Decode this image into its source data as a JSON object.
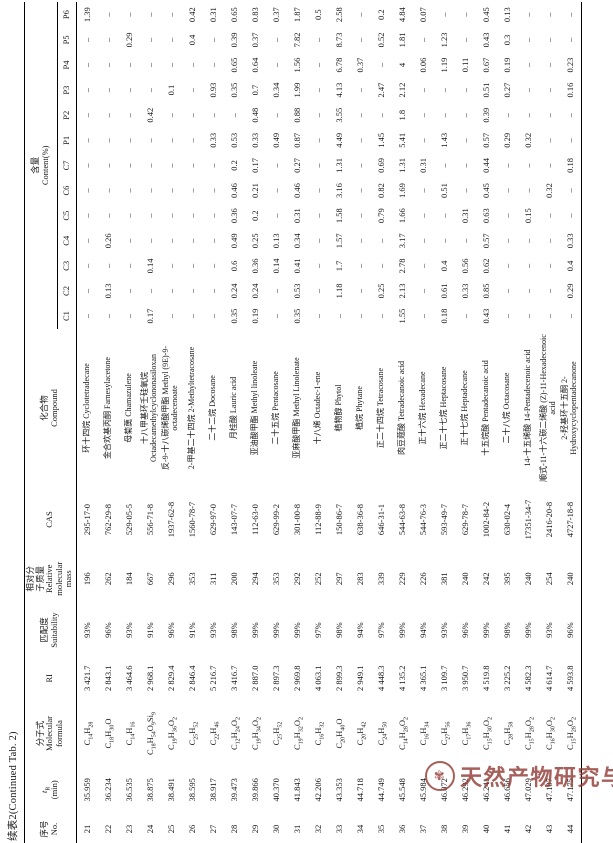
{
  "caption": "续表2(Continued Tab. 2)",
  "watermark": {
    "text": "天然产物研究与开发"
  },
  "colors": {
    "rule": "#000000",
    "watermark": "#923d37",
    "text": "#161616"
  },
  "table": {
    "headers": {
      "no": "序号\nNo.",
      "tr_sym": "t",
      "tr_sub": "R",
      "tr_unit": "(min)",
      "formula": "分子式\nMolecular\nformula",
      "ri": "RI",
      "suitability": "匹配度\nSuitability",
      "mass": "相对分\n子质量\nRelative\nmolecular\nmass",
      "cas": "CAS",
      "compound": "化合物\nCompound",
      "content": "含量\nContent(%)"
    },
    "content_cols": [
      "C1",
      "C2",
      "C3",
      "C4",
      "C5",
      "C6",
      "C7",
      "P1",
      "P2",
      "P3",
      "P4",
      "P5",
      "P6"
    ],
    "rows": [
      {
        "no": "21",
        "tr": "35.959",
        "formula": "C14H28",
        "ri": "3 421.7",
        "suit": "93%",
        "mass": "196",
        "cas": "295-17-0",
        "cn": "环十四烷",
        "en": "Cyclotetradecane",
        "c": [
          "–",
          "–",
          "–",
          "–",
          "–",
          "–",
          "–",
          "–",
          "–",
          "–",
          "–",
          "–",
          "1.39"
        ]
      },
      {
        "no": "22",
        "tr": "36.234",
        "formula": "C18H30O",
        "ri": "2 843.1",
        "suit": "96%",
        "mass": "262",
        "cas": "762-29-8",
        "cn": "金合欢基丙酮",
        "en": "Farnesylacetone",
        "c": [
          "–",
          "0.13",
          "–",
          "0.26",
          "–",
          "–",
          "–",
          "–",
          "–",
          "–",
          "–",
          "–",
          "–"
        ]
      },
      {
        "no": "23",
        "tr": "36.535",
        "formula": "C14H16",
        "ri": "3 464.6",
        "suit": "93%",
        "mass": "184",
        "cas": "529-05-5",
        "cn": "母菊薁",
        "en": "Chamazulene",
        "c": [
          "–",
          "–",
          "–",
          "–",
          "–",
          "–",
          "–",
          "–",
          "–",
          "–",
          "–",
          "0.29",
          "–"
        ]
      },
      {
        "no": "24",
        "tr": "38.875",
        "formula": "C18H54O9Si9",
        "ri": "2 968.1",
        "suit": "91%",
        "mass": "667",
        "cas": "556-71-8",
        "cn": "十八甲基环壬硅氧烷",
        "en": "Octadecamethylcyclononasiloxan",
        "c": [
          "0.17",
          "–",
          "0.14",
          "–",
          "–",
          "–",
          "–",
          "–",
          "0.42",
          "–",
          "–",
          "–",
          "–"
        ]
      },
      {
        "no": "25",
        "tr": "38.491",
        "formula": "C19H36O2",
        "ri": "2 829.4",
        "suit": "96%",
        "mass": "296",
        "cas": "1937-62-8",
        "cn": "反-9-十八碳烯酸甲酯",
        "en": "Methyl (9E)-9-octadecenoate",
        "c": [
          "–",
          "–",
          "–",
          "–",
          "–",
          "–",
          "–",
          "–",
          "–",
          "0.1",
          "–",
          "–",
          "–"
        ]
      },
      {
        "no": "26",
        "tr": "38.595",
        "formula": "C25H52",
        "ri": "2 846.4",
        "suit": "91%",
        "mass": "353",
        "cas": "1560-78-7",
        "cn": "2-甲基二十四烷",
        "en": "2-Methyltetracosane",
        "c": [
          "–",
          "–",
          "–",
          "–",
          "–",
          "–",
          "–",
          "–",
          "–",
          "–",
          "–",
          "0.4",
          "0.42"
        ]
      },
      {
        "no": "27",
        "tr": "38.917",
        "formula": "C22H46",
        "ri": "5 216.7",
        "suit": "93%",
        "mass": "311",
        "cas": "629-97-0",
        "cn": "二十二烷",
        "en": "Docosane",
        "c": [
          "–",
          "–",
          "–",
          "–",
          "–",
          "–",
          "–",
          "0.33",
          "–",
          "0.93",
          "–",
          "–",
          "0.31"
        ]
      },
      {
        "no": "28",
        "tr": "39.473",
        "formula": "C12H24O2",
        "ri": "3 416.7",
        "suit": "98%",
        "mass": "200",
        "cas": "143-07-7",
        "cn": "月桂酸",
        "en": "Lauric acid",
        "c": [
          "0.35",
          "0.24",
          "0.6",
          "0.49",
          "0.36",
          "0.46",
          "0.2",
          "0.53",
          "–",
          "0.35",
          "0.65",
          "0.39",
          "0.65"
        ]
      },
      {
        "no": "29",
        "tr": "39.866",
        "formula": "C19H34O2",
        "ri": "2 887.0",
        "suit": "99%",
        "mass": "294",
        "cas": "112-63-0",
        "cn": "亚油酸甲酯",
        "en": "Methyl linoleate",
        "c": [
          "0.19",
          "0.24",
          "0.36",
          "0.25",
          "0.2",
          "0.21",
          "0.17",
          "0.33",
          "0.48",
          "0.7",
          "0.64",
          "0.37",
          "0.83"
        ]
      },
      {
        "no": "30",
        "tr": "40.370",
        "formula": "C25H52",
        "ri": "2 897.3",
        "suit": "99%",
        "mass": "353",
        "cas": "629-99-2",
        "cn": "二十五烷",
        "en": "Pentacosane",
        "c": [
          "–",
          "–",
          "0.14",
          "0.13",
          "–",
          "–",
          "–",
          "0.49",
          "–",
          "0.34",
          "–",
          "–",
          "0.37"
        ]
      },
      {
        "no": "31",
        "tr": "41.843",
        "formula": "C19H32O2",
        "ri": "2 969.8",
        "suit": "99%",
        "mass": "292",
        "cas": "301-00-8",
        "cn": "亚麻酸甲酯",
        "en": "Methyl Linolenate",
        "c": [
          "0.35",
          "0.53",
          "0.41",
          "0.34",
          "0.31",
          "0.46",
          "0.27",
          "0.87",
          "0.88",
          "1.99",
          "1.56",
          "7.82",
          "1.87"
        ]
      },
      {
        "no": "32",
        "tr": "42.206",
        "formula": "C16H32",
        "ri": "4 063.1",
        "suit": "97%",
        "mass": "252",
        "cas": "112-88-9",
        "cn": "十八烯",
        "en": "Octadec-1-ene",
        "c": [
          "–",
          "–",
          "–",
          "–",
          "–",
          "–",
          "–",
          "–",
          "–",
          "–",
          "–",
          "–",
          "0.5"
        ]
      },
      {
        "no": "33",
        "tr": "43.353",
        "formula": "C20H40O",
        "ri": "2 899.3",
        "suit": "98%",
        "mass": "297",
        "cas": "150-86-7",
        "cn": "植物醇",
        "en": "Phytol",
        "c": [
          "–",
          "1.18",
          "1.7",
          "1.57",
          "1.58",
          "3.16",
          "1.31",
          "4.49",
          "3.55",
          "4.13",
          "6.78",
          "8.73",
          "2.58"
        ]
      },
      {
        "no": "34",
        "tr": "44.718",
        "formula": "C20H42",
        "ri": "2 949.1",
        "suit": "94%",
        "mass": "283",
        "cas": "638-36-8",
        "cn": "植烷",
        "en": "Phytane",
        "c": [
          "–",
          "–",
          "–",
          "–",
          "–",
          "–",
          "–",
          "–",
          "–",
          "–",
          "0.37",
          "–",
          "–"
        ]
      },
      {
        "no": "35",
        "tr": "44.749",
        "formula": "C24H50",
        "ri": "4 448.3",
        "suit": "97%",
        "mass": "339",
        "cas": "646-31-1",
        "cn": "正二十四烷",
        "en": "Tetracosane",
        "c": [
          "–",
          "0.25",
          "–",
          "–",
          "0.79",
          "0.82",
          "0.69",
          "1.45",
          "–",
          "2.47",
          "–",
          "0.52",
          "0.2"
        ]
      },
      {
        "no": "36",
        "tr": "45.548",
        "formula": "C14H28O2",
        "ri": "4 135.2",
        "suit": "99%",
        "mass": "229",
        "cas": "544-63-8",
        "cn": "肉豆蔻酸",
        "en": "Tetradecanoic acid",
        "c": [
          "1.55",
          "2.13",
          "2.78",
          "3.17",
          "1.66",
          "1.69",
          "1.31",
          "5.41",
          "1.8",
          "2.12",
          "4",
          "1.81",
          "4.84"
        ]
      },
      {
        "no": "37",
        "tr": "45.984",
        "formula": "C16H34",
        "ri": "4 365.1",
        "suit": "94%",
        "mass": "226",
        "cas": "544-76-3",
        "cn": "正十六烷",
        "en": "Hexadecane",
        "c": [
          "–",
          "–",
          "–",
          "–",
          "–",
          "–",
          "0.31",
          "–",
          "–",
          "–",
          "0.06",
          "–",
          "0.07"
        ]
      },
      {
        "no": "38",
        "tr": "46.072",
        "formula": "C27H56",
        "ri": "3 109.7",
        "suit": "93%",
        "mass": "381",
        "cas": "593-49-7",
        "cn": "正二十七烷",
        "en": "Heptacosane",
        "c": [
          "0.18",
          "0.61",
          "0.4",
          "–",
          "–",
          "0.51",
          "–",
          "1.43",
          "–",
          "–",
          "1.19",
          "1.23",
          "–"
        ]
      },
      {
        "no": "39",
        "tr": "46.292",
        "formula": "C17H36",
        "ri": "3 950.7",
        "suit": "96%",
        "mass": "240",
        "cas": "629-78-7",
        "cn": "正十七烷",
        "en": "Heptadecane",
        "c": [
          "–",
          "0.33",
          "0.56",
          "–",
          "0.31",
          "–",
          "–",
          "–",
          "–",
          "–",
          "0.11",
          "–",
          "–"
        ]
      },
      {
        "no": "40",
        "tr": "46.241",
        "formula": "C15H30O2",
        "ri": "4 519.8",
        "suit": "99%",
        "mass": "242",
        "cas": "1002-84-2",
        "cn": "十五烷酸",
        "en": "Pentadecanoic acid",
        "c": [
          "0.43",
          "0.85",
          "0.62",
          "0.57",
          "0.63",
          "0.45",
          "0.44",
          "0.57",
          "0.39",
          "0.51",
          "0.67",
          "0.43",
          "0.45"
        ]
      },
      {
        "no": "41",
        "tr": "46.656",
        "formula": "C28H58",
        "ri": "3 225.2",
        "suit": "98%",
        "mass": "395",
        "cas": "630-02-4",
        "cn": "二十八烷",
        "en": "Octacosane",
        "c": [
          "–",
          "–",
          "–",
          "–",
          "–",
          "–",
          "–",
          "0.29",
          "–",
          "0.27",
          "0.19",
          "0.3",
          "0.13"
        ]
      },
      {
        "no": "42",
        "tr": "47.029",
        "formula": "C15H28O2",
        "ri": "4 582.3",
        "suit": "99%",
        "mass": "240",
        "cas": "17351-34-7",
        "cn": "14-十五烯酸",
        "en": "14-Pentadecenoic acid",
        "c": [
          "–",
          "–",
          "–",
          "–",
          "0.15",
          "–",
          "–",
          "0.32",
          "–",
          "–",
          "–",
          "–",
          "–"
        ]
      },
      {
        "no": "43",
        "tr": "47.107",
        "formula": "C16H30O2",
        "ri": "4 614.7",
        "suit": "93%",
        "mass": "254",
        "cas": "2416-20-8",
        "cn": "顺式-11-十六碳二烯酸",
        "en": "(Z)-11-Hexadecenoic acid",
        "c": [
          "–",
          "–",
          "–",
          "–",
          "–",
          "0.32",
          "–",
          "–",
          "–",
          "–",
          "–",
          "–",
          "–"
        ]
      },
      {
        "no": "44",
        "tr": "47.175",
        "formula": "C15H28O2",
        "ri": "4 593.8",
        "suit": "96%",
        "mass": "240",
        "cas": "4727-18-8",
        "cn": "2-羟基环十五酮",
        "en": "2-Hydroxycyclopentadecanone",
        "c": [
          "–",
          "0.29",
          "0.4",
          "0.33",
          "–",
          "–",
          "0.18",
          "–",
          "–",
          "0.16",
          "0.23",
          "–",
          "–"
        ]
      }
    ]
  }
}
